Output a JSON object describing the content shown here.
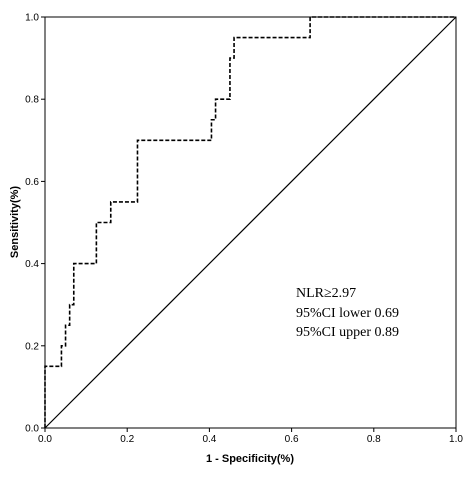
{
  "chart_data": {
    "type": "line",
    "title": "",
    "xlabel": "1 - Specificity(%)",
    "ylabel": "Sensitivity(%)",
    "xlim": [
      0,
      1
    ],
    "ylim": [
      0,
      1
    ],
    "x_ticks": [
      "0.0",
      "0.2",
      "0.4",
      "0.6",
      "0.8",
      "1.0"
    ],
    "y_ticks": [
      "0.0",
      "0.2",
      "0.4",
      "0.6",
      "0.8",
      "1.0"
    ],
    "grid": false,
    "legend": "none",
    "series": [
      {
        "style": "dashed",
        "color": "#000000",
        "points": [
          [
            0,
            0
          ],
          [
            0,
            0.15
          ],
          [
            0.04,
            0.15
          ],
          [
            0.04,
            0.2
          ],
          [
            0.05,
            0.2
          ],
          [
            0.05,
            0.25
          ],
          [
            0.06,
            0.25
          ],
          [
            0.06,
            0.3
          ],
          [
            0.07,
            0.3
          ],
          [
            0.07,
            0.4
          ],
          [
            0.125,
            0.4
          ],
          [
            0.125,
            0.5
          ],
          [
            0.16,
            0.5
          ],
          [
            0.16,
            0.55
          ],
          [
            0.225,
            0.55
          ],
          [
            0.225,
            0.7
          ],
          [
            0.405,
            0.7
          ],
          [
            0.405,
            0.75
          ],
          [
            0.415,
            0.75
          ],
          [
            0.415,
            0.8
          ],
          [
            0.45,
            0.8
          ],
          [
            0.45,
            0.9
          ],
          [
            0.46,
            0.9
          ],
          [
            0.46,
            0.95
          ],
          [
            0.645,
            0.95
          ],
          [
            0.645,
            1.0
          ],
          [
            1.0,
            1.0
          ]
        ]
      },
      {
        "style": "solid",
        "color": "#000000",
        "points": [
          [
            0,
            0
          ],
          [
            1,
            1
          ]
        ]
      }
    ],
    "annotations": [
      "NLR≥2.97",
      "95%CI lower 0.69",
      "95%CI upper 0.89"
    ]
  }
}
